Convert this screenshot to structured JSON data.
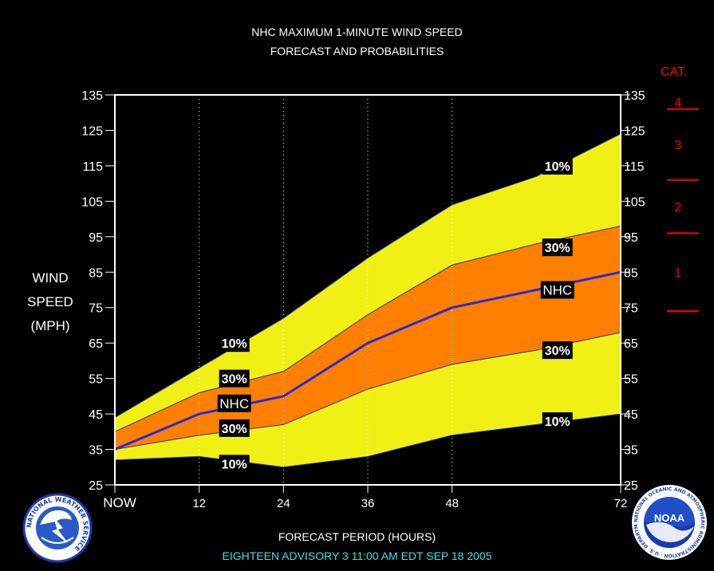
{
  "title_line1": "NHC MAXIMUM 1-MINUTE WIND SPEED",
  "title_line2": "FORECAST AND PROBABILITIES",
  "ylabel_lines": [
    "WIND",
    "SPEED",
    "(MPH)"
  ],
  "xlabel": "FORECAST PERIOD (HOURS)",
  "advisory": "EIGHTEEN   ADVISORY  3 11:00  AM  EDT  SEP  18  2005",
  "category_title": "CAT.",
  "categories": [
    {
      "label": "4",
      "bounds": [
        131,
        135
      ]
    },
    {
      "label": "3",
      "bounds": [
        111,
        131
      ]
    },
    {
      "label": "2",
      "bounds": [
        96,
        111
      ]
    },
    {
      "label": "1",
      "bounds": [
        74,
        96
      ]
    }
  ],
  "category_lines": [
    131,
    111,
    96,
    74
  ],
  "logos": {
    "left_text": "NATIONAL WEATHER SERVICE",
    "right_text": "NOAA",
    "right_ring_text": "NATIONAL OCEANIC AND ATMOSPHERIC ADMINISTRATION · U.S. DEPARTMENT OF COMMERCE"
  },
  "colors": {
    "background": "#000000",
    "outer_band": "#f0f014",
    "inner_band": "#ff8000",
    "nhc_line": "#2a2ad8",
    "category": "#ff0000",
    "advisory": "#40e0e0"
  },
  "chart_data": {
    "type": "area",
    "x": [
      0,
      12,
      24,
      36,
      48,
      60,
      72
    ],
    "x_tick_labels": [
      "NOW",
      "12",
      "24",
      "36",
      "48",
      "72"
    ],
    "x_tick_values": [
      0,
      12,
      24,
      36,
      48,
      72
    ],
    "xlim": [
      0,
      72
    ],
    "ylim": [
      25,
      135
    ],
    "y_ticks": [
      25,
      35,
      45,
      55,
      65,
      75,
      85,
      95,
      105,
      115,
      125,
      135
    ],
    "vertical_grid": [
      12,
      24,
      36,
      48
    ],
    "series": [
      {
        "name": "10%",
        "values": [
          44,
          58,
          72,
          89,
          104,
          112,
          124
        ]
      },
      {
        "name": "30%",
        "values": [
          40,
          51,
          57,
          73,
          87,
          93,
          98
        ]
      },
      {
        "name": "NHC",
        "values": [
          35,
          45,
          50,
          65,
          75,
          80,
          85
        ]
      },
      {
        "name": "30%",
        "values": [
          35,
          39,
          42,
          52,
          59,
          63,
          68
        ]
      },
      {
        "name": "10%",
        "values": [
          32,
          33,
          30,
          33,
          39,
          42,
          45
        ]
      }
    ],
    "band_labels": [
      {
        "text": "10%",
        "x": 17,
        "y": 65
      },
      {
        "text": "30%",
        "x": 17,
        "y": 55
      },
      {
        "text": "NHC",
        "x": 17,
        "y": 48
      },
      {
        "text": "30%",
        "x": 17,
        "y": 41
      },
      {
        "text": "10%",
        "x": 17,
        "y": 31
      },
      {
        "text": "10%",
        "x": 63,
        "y": 115
      },
      {
        "text": "30%",
        "x": 63,
        "y": 92
      },
      {
        "text": "NHC",
        "x": 63,
        "y": 80
      },
      {
        "text": "30%",
        "x": 63,
        "y": 63
      },
      {
        "text": "10%",
        "x": 63,
        "y": 43
      }
    ]
  }
}
